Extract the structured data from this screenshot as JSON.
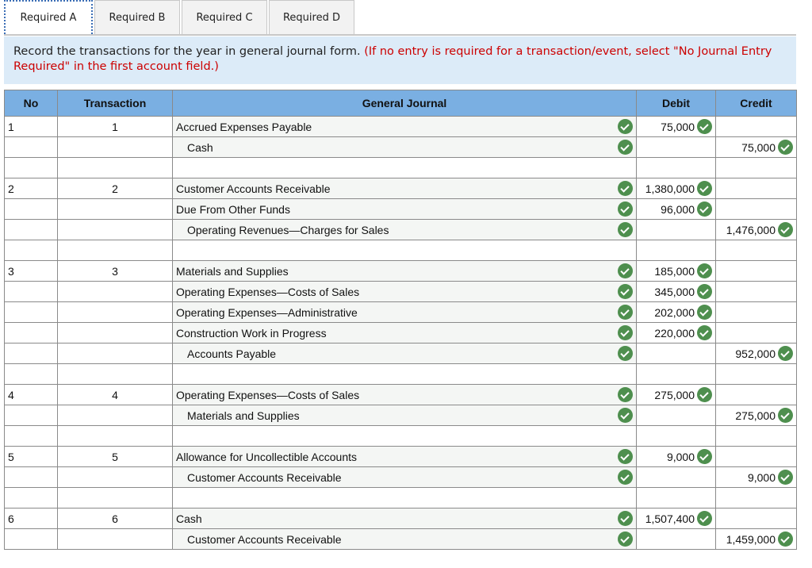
{
  "tabs": [
    {
      "label": "Required A",
      "active": true
    },
    {
      "label": "Required B"
    },
    {
      "label": "Required C"
    },
    {
      "label": "Required D"
    }
  ],
  "instructions": {
    "text": "Record the transactions for the year in general journal form.",
    "note": "(If no entry is required for a transaction/event, select \"No Journal Entry Required\" in the first account field.)"
  },
  "colors": {
    "header": "#7aafe2",
    "instructions_bg": "#dcebf8",
    "check": "#4e8f4e",
    "note": "#cc0000"
  },
  "table": {
    "headers": [
      "No",
      "Transaction",
      "General Journal",
      "Debit",
      "Credit"
    ],
    "rows": [
      {
        "no": "1",
        "txn": "1",
        "account": "Accrued Expenses Payable",
        "debit": "75,000",
        "credit": ""
      },
      {
        "no": "",
        "txn": "",
        "account": "Cash",
        "debit": "",
        "credit": "75,000",
        "indent": true
      },
      {
        "blank": true
      },
      {
        "no": "2",
        "txn": "2",
        "account": "Customer Accounts Receivable",
        "debit": "1,380,000",
        "credit": ""
      },
      {
        "no": "",
        "txn": "",
        "account": "Due From Other Funds",
        "debit": "96,000",
        "credit": ""
      },
      {
        "no": "",
        "txn": "",
        "account": "Operating Revenues—Charges for Sales",
        "debit": "",
        "credit": "1,476,000",
        "indent": true
      },
      {
        "blank": true
      },
      {
        "no": "3",
        "txn": "3",
        "account": "Materials and Supplies",
        "debit": "185,000",
        "credit": ""
      },
      {
        "no": "",
        "txn": "",
        "account": "Operating Expenses—Costs of Sales",
        "debit": "345,000",
        "credit": ""
      },
      {
        "no": "",
        "txn": "",
        "account": "Operating Expenses—Administrative",
        "debit": "202,000",
        "credit": ""
      },
      {
        "no": "",
        "txn": "",
        "account": "Construction Work in Progress",
        "debit": "220,000",
        "credit": ""
      },
      {
        "no": "",
        "txn": "",
        "account": "Accounts Payable",
        "debit": "",
        "credit": "952,000",
        "indent": true
      },
      {
        "blank": true
      },
      {
        "no": "4",
        "txn": "4",
        "account": "Operating Expenses—Costs of Sales",
        "debit": "275,000",
        "credit": ""
      },
      {
        "no": "",
        "txn": "",
        "account": "Materials and Supplies",
        "debit": "",
        "credit": "275,000",
        "indent": true
      },
      {
        "blank": true
      },
      {
        "no": "5",
        "txn": "5",
        "account": "Allowance for Uncollectible Accounts",
        "debit": "9,000",
        "credit": ""
      },
      {
        "no": "",
        "txn": "",
        "account": "Customer Accounts Receivable",
        "debit": "",
        "credit": "9,000",
        "indent": true
      },
      {
        "blank": true
      },
      {
        "no": "6",
        "txn": "6",
        "account": "Cash",
        "debit": "1,507,400",
        "credit": ""
      },
      {
        "no": "",
        "txn": "",
        "account": "Customer Accounts Receivable",
        "debit": "",
        "credit": "1,459,000",
        "indent": true
      }
    ]
  }
}
